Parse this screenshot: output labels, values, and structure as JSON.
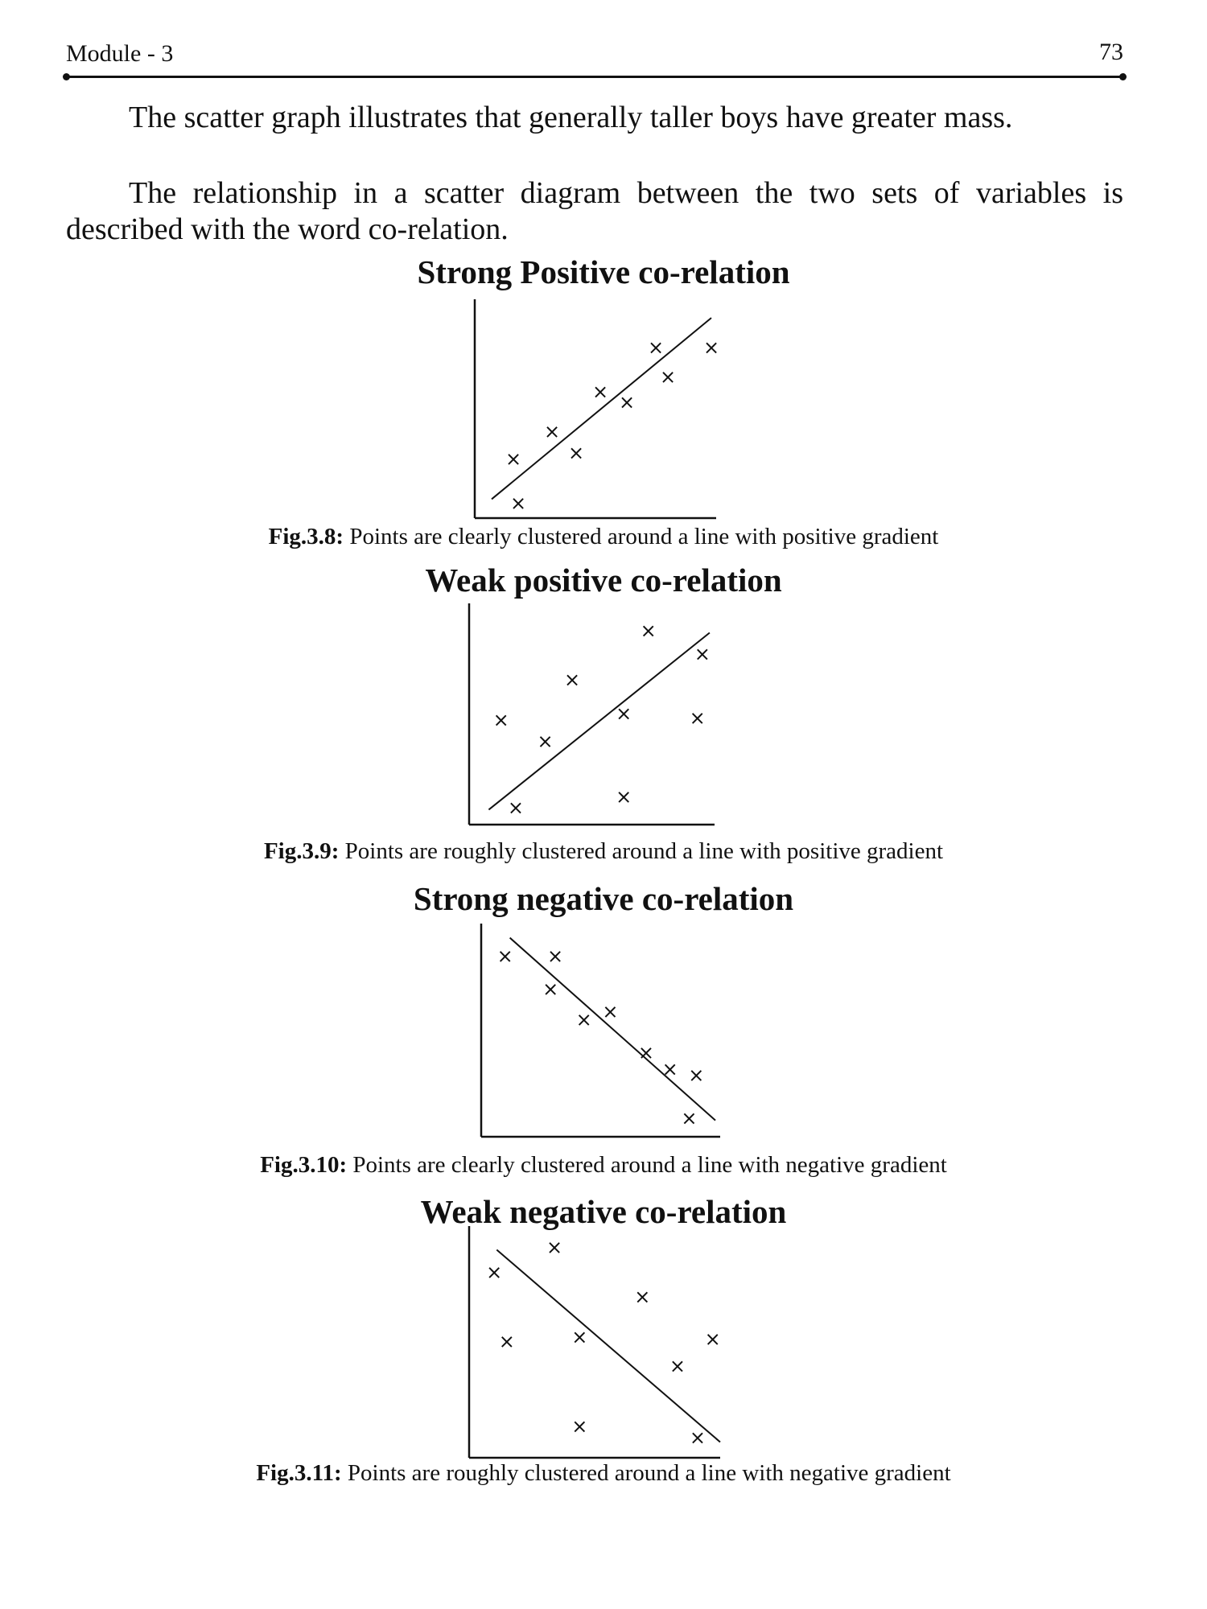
{
  "header": {
    "module": "Module - 3",
    "page_number": "73"
  },
  "paragraphs": [
    "The scatter graph illustrates that generally taller boys have greater mass.",
    "The relationship in a scatter diagram between the two sets of variables is described with the word co-relation."
  ],
  "marker_glyph": "×",
  "figures": [
    {
      "title": "Strong Positive co-relation",
      "fig_label": "Fig.3.8:",
      "caption": "Points are clearly clustered around a line with positive gradient"
    },
    {
      "title": "Weak positive co-relation",
      "fig_label": "Fig.3.9:",
      "caption": "Points are roughly clustered around a line with positive gradient"
    },
    {
      "title": "Strong negative co-relation",
      "fig_label": "Fig.3.10:",
      "caption": "Points are clearly clustered around a line with negative gradient"
    },
    {
      "title": "Weak negative co-relation",
      "fig_label": "Fig.3.11:",
      "caption": "Points are roughly clustered around a line with negative gradient"
    }
  ],
  "chart_data": [
    {
      "type": "scatter",
      "title": "Strong Positive co-relation",
      "xlim": [
        0,
        10
      ],
      "ylim": [
        0,
        10
      ],
      "x": [
        1.6,
        1.8,
        3.2,
        4.2,
        5.2,
        6.3,
        7.5,
        8.0,
        9.8
      ],
      "y": [
        2.8,
        0.7,
        4.1,
        3.1,
        6.0,
        5.5,
        8.1,
        6.7,
        8.1
      ],
      "trend_line": [
        [
          0.7,
          0.9
        ],
        [
          9.8,
          9.5
        ]
      ]
    },
    {
      "type": "scatter",
      "title": "Weak positive co-relation",
      "xlim": [
        0,
        10
      ],
      "ylim": [
        0,
        10
      ],
      "x": [
        1.3,
        1.9,
        3.1,
        4.2,
        6.3,
        6.3,
        7.3,
        9.3,
        9.5
      ],
      "y": [
        4.9,
        0.8,
        3.9,
        6.8,
        5.2,
        1.3,
        9.1,
        5.0,
        8.0
      ],
      "trend_line": [
        [
          0.8,
          0.7
        ],
        [
          9.8,
          9.0
        ]
      ]
    },
    {
      "type": "scatter",
      "title": "Strong negative co-relation",
      "xlim": [
        0,
        10
      ],
      "ylim": [
        0,
        10
      ],
      "x": [
        1.0,
        3.1,
        2.9,
        4.3,
        5.4,
        6.9,
        7.9,
        9.0,
        8.7
      ],
      "y": [
        8.8,
        8.8,
        7.2,
        5.7,
        6.1,
        4.1,
        3.3,
        3.0,
        0.9
      ],
      "trend_line": [
        [
          1.2,
          9.7
        ],
        [
          9.8,
          0.8
        ]
      ]
    },
    {
      "type": "scatter",
      "title": "Weak negative co-relation",
      "xlim": [
        0,
        10
      ],
      "ylim": [
        0,
        10
      ],
      "x": [
        1.0,
        3.4,
        6.9,
        1.5,
        4.4,
        9.7,
        8.3,
        4.4,
        9.1
      ],
      "y": [
        8.3,
        9.4,
        7.2,
        5.2,
        5.4,
        5.3,
        4.1,
        1.4,
        0.9
      ],
      "trend_line": [
        [
          1.1,
          9.3
        ],
        [
          10.0,
          0.7
        ]
      ]
    }
  ]
}
